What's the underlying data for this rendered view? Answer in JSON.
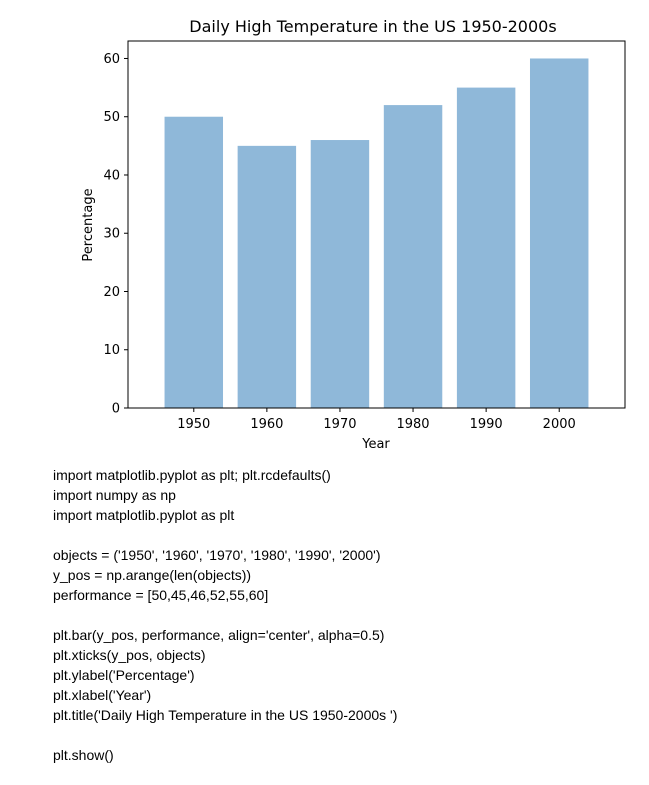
{
  "chart_data": {
    "type": "bar",
    "title": "Daily High Temperature in the US 1950-2000s",
    "xlabel": "Year",
    "ylabel": "Percentage",
    "categories": [
      "1950",
      "1960",
      "1970",
      "1980",
      "1990",
      "2000"
    ],
    "values": [
      50,
      45,
      46,
      52,
      55,
      60
    ],
    "ylim": [
      0,
      63
    ],
    "yticks": [
      0,
      10,
      20,
      30,
      40,
      50,
      60
    ],
    "bar_color": "#8fb8d9",
    "grid": false,
    "legend": "none"
  },
  "code": {
    "lines": [
      "import matplotlib.pyplot as plt; plt.rcdefaults()",
      "import numpy as np",
      "import matplotlib.pyplot as plt",
      "",
      "objects = ('1950', '1960', '1970', '1980', '1990', '2000')",
      "y_pos = np.arange(len(objects))",
      "performance = [50,45,46,52,55,60]",
      "",
      "plt.bar(y_pos, performance, align='center', alpha=0.5)",
      "plt.xticks(y_pos, objects)",
      "plt.ylabel('Percentage')",
      "plt.xlabel('Year')",
      "plt.title('Daily High Temperature in the US 1950-2000s ')",
      "",
      "plt.show()"
    ]
  }
}
